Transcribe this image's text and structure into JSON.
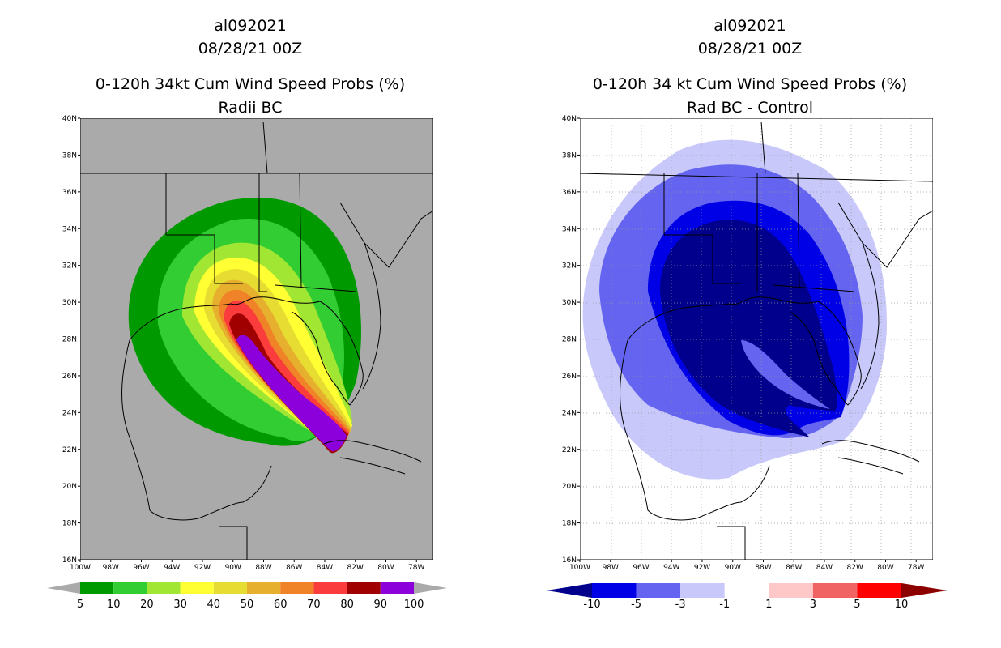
{
  "left": {
    "title1": "al092021",
    "title2": "08/28/21 00Z",
    "title3": "0-120h 34kt Cum Wind Speed Probs (%)",
    "title4": "Radii BC",
    "lat_ticks": [
      "40N",
      "38N",
      "36N",
      "34N",
      "32N",
      "30N",
      "28N",
      "26N",
      "24N",
      "22N",
      "20N",
      "18N",
      "16N"
    ],
    "lon_ticks": [
      "100W",
      "98W",
      "96W",
      "94W",
      "92W",
      "90W",
      "88W",
      "86W",
      "84W",
      "82W",
      "80W",
      "78W"
    ],
    "colorbar": {
      "labels": [
        "5",
        "10",
        "20",
        "30",
        "40",
        "50",
        "60",
        "70",
        "80",
        "90",
        "100"
      ],
      "colors": [
        "#009a00",
        "#32cd32",
        "#a0e632",
        "#ffff33",
        "#e6dc32",
        "#e6af2d",
        "#f08228",
        "#fa3c3c",
        "#a00000",
        "#8c00dc"
      ],
      "end_color": "#aaaaaa"
    }
  },
  "right": {
    "title1": "al092021",
    "title2": "08/28/21 00Z",
    "title3": "0-120h 34 kt Cum Wind Speed Probs (%)",
    "title4": "Rad BC - Control",
    "lat_ticks": [
      "40N",
      "38N",
      "36N",
      "34N",
      "32N",
      "30N",
      "28N",
      "26N",
      "24N",
      "22N",
      "20N",
      "18N",
      "16N"
    ],
    "lon_ticks": [
      "100W",
      "98W",
      "96W",
      "94W",
      "92W",
      "90W",
      "88W",
      "86W",
      "84W",
      "82W",
      "80W",
      "78W"
    ],
    "colorbar": {
      "labels": [
        "-10",
        "-5",
        "-3",
        "-1",
        "1",
        "3",
        "5",
        "10"
      ],
      "colors": [
        "#0000e6",
        "#6464f0",
        "#c8c8fa",
        "#ffffff",
        "#ffc8c8",
        "#f06464",
        "#ff0000"
      ],
      "low_color": "#00008c",
      "high_color": "#8c0000"
    }
  },
  "colors": {
    "land_left": "#aaaaaa",
    "line": "#000000"
  }
}
